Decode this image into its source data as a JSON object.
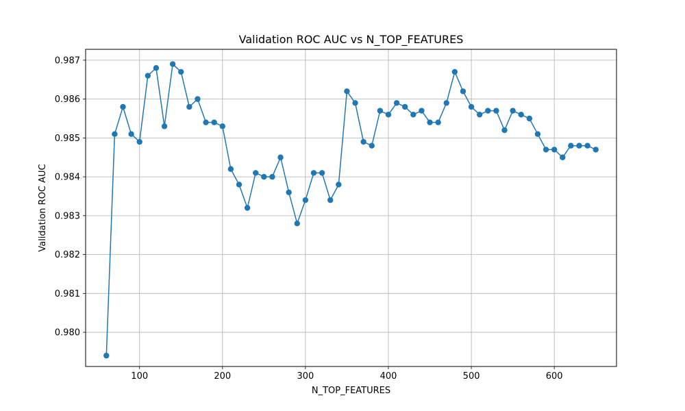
{
  "chart_data": {
    "type": "line",
    "title": "Validation ROC AUC vs N_TOP_FEATURES",
    "xlabel": "N_TOP_FEATURES",
    "ylabel": "Validation ROC AUC",
    "xlim": [
      35,
      675
    ],
    "ylim": [
      0.97912,
      0.98728
    ],
    "xticks": [
      100,
      200,
      300,
      400,
      500,
      600
    ],
    "xtick_labels": [
      "100",
      "200",
      "300",
      "400",
      "500",
      "600"
    ],
    "yticks": [
      0.98,
      0.981,
      0.982,
      0.983,
      0.984,
      0.985,
      0.986,
      0.987
    ],
    "ytick_labels": [
      "0.980",
      "0.981",
      "0.982",
      "0.983",
      "0.984",
      "0.985",
      "0.986",
      "0.987"
    ],
    "grid": true,
    "markers": "circle",
    "colors": {
      "line": "#1f77b4",
      "grid": "#b0b0b0",
      "axes": "#000000"
    },
    "series": [
      {
        "x": [
          60,
          70,
          80,
          90,
          100,
          110,
          120,
          130,
          140,
          150,
          160,
          170,
          180,
          190,
          200,
          210,
          220,
          230,
          240,
          250,
          260,
          270,
          280,
          290,
          300,
          310,
          320,
          330,
          340,
          350,
          360,
          370,
          380,
          390,
          400,
          410,
          420,
          430,
          440,
          450,
          460,
          470,
          480,
          490,
          500,
          510,
          520,
          530,
          540,
          550,
          560,
          570,
          580,
          590,
          600,
          610,
          620,
          630,
          640,
          650
        ],
        "values": [
          0.9794,
          0.9851,
          0.9858,
          0.9851,
          0.9849,
          0.9866,
          0.9868,
          0.9853,
          0.9869,
          0.9867,
          0.9858,
          0.986,
          0.9854,
          0.9854,
          0.9853,
          0.9842,
          0.9838,
          0.9832,
          0.9841,
          0.984,
          0.984,
          0.9845,
          0.9836,
          0.9828,
          0.9834,
          0.9841,
          0.9841,
          0.9834,
          0.9838,
          0.9862,
          0.9859,
          0.9849,
          0.9848,
          0.9857,
          0.9856,
          0.9859,
          0.9858,
          0.9856,
          0.9857,
          0.9854,
          0.9854,
          0.9859,
          0.9867,
          0.9862,
          0.9858,
          0.9856,
          0.9857,
          0.9857,
          0.9852,
          0.9857,
          0.9856,
          0.9855,
          0.9851,
          0.9847,
          0.9847,
          0.9845,
          0.9848,
          0.9848,
          0.9848,
          0.9847
        ]
      }
    ]
  }
}
